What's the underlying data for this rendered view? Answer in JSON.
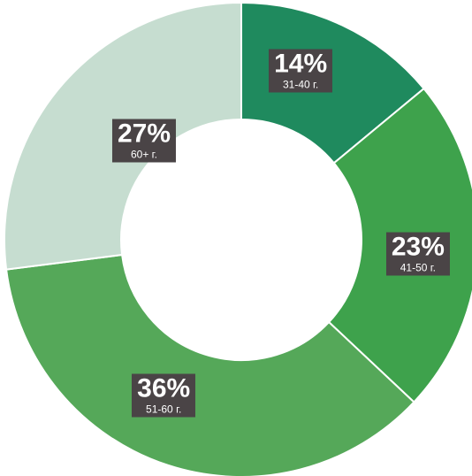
{
  "chart_data": {
    "type": "pie",
    "subtype": "donut",
    "slices": [
      {
        "label": "31-40 г.",
        "value": 14,
        "value_text": "14%",
        "color": "#1f8a5e"
      },
      {
        "label": "41-50 г.",
        "value": 23,
        "value_text": "23%",
        "color": "#3ea24c"
      },
      {
        "label": "51-60 г.",
        "value": 36,
        "value_text": "36%",
        "color": "#55a859"
      },
      {
        "label": "60+ г.",
        "value": 27,
        "value_text": "27%",
        "color": "#c6ddd0"
      }
    ],
    "start_angle_deg": 0,
    "direction": "clockwise",
    "label_background": "#4a4446",
    "separator_color": "#ffffff"
  }
}
